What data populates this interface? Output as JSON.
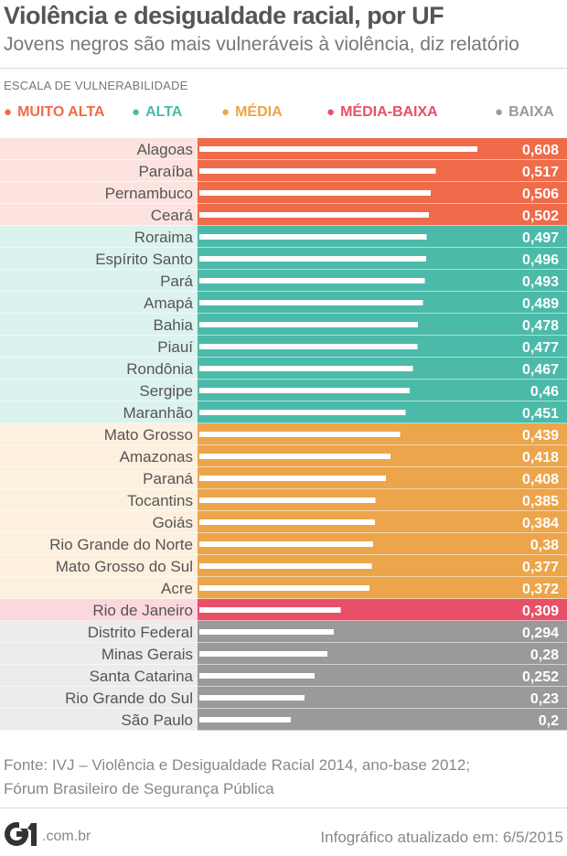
{
  "header": {
    "title": "Violência e desigualdade racial, por UF",
    "subtitle": "Jovens negros são mais vulneráveis à violência, diz relatório"
  },
  "scale_label": "ESCALA DE VULNERABILIDADE",
  "legend": [
    {
      "key": "muito-alta",
      "label": "MUITO ALTA",
      "color": "#ef6b4a"
    },
    {
      "key": "alta",
      "label": "ALTA",
      "color": "#4cbaa9"
    },
    {
      "key": "media",
      "label": "MÉDIA",
      "color": "#eca54a"
    },
    {
      "key": "media-baixa",
      "label": "MÉDIA-BAIXA",
      "color": "#e8506a"
    },
    {
      "key": "baixa",
      "label": "BAIXA",
      "color": "#9a9a9a"
    }
  ],
  "colors": {
    "muito-alta": {
      "bar": "#ef6b4a",
      "bg": "#fde3df"
    },
    "alta": {
      "bar": "#4cbaa9",
      "bg": "#dcf2ee"
    },
    "media": {
      "bar": "#eca54a",
      "bg": "#fdf0df"
    },
    "media-baixa": {
      "bar": "#e8506a",
      "bg": "#fbd8de"
    },
    "baixa": {
      "bar": "#9a9a9a",
      "bg": "#ececec"
    }
  },
  "chart_data": {
    "type": "bar",
    "orientation": "horizontal",
    "title": "Violência e desigualdade racial, por UF",
    "subtitle": "Jovens negros são mais vulneráveis à violência, diz relatório",
    "xlim": [
      0,
      0.7
    ],
    "grid": false,
    "legend_position": "top",
    "categories": [
      "Alagoas",
      "Paraíba",
      "Pernambuco",
      "Ceará",
      "Roraima",
      "Espírito Santo",
      "Pará",
      "Amapá",
      "Bahia",
      "Piauí",
      "Rondônia",
      "Sergipe",
      "Maranhão",
      "Mato Grosso",
      "Amazonas",
      "Paraná",
      "Tocantins",
      "Goiás",
      "Rio Grande do Norte",
      "Mato Grosso do Sul",
      "Acre",
      "Rio de Janeiro",
      "Distrito Federal",
      "Minas Gerais",
      "Santa Catarina",
      "Rio Grande do Sul",
      "São Paulo"
    ],
    "values": [
      0.608,
      0.517,
      0.506,
      0.502,
      0.497,
      0.496,
      0.493,
      0.489,
      0.478,
      0.477,
      0.467,
      0.46,
      0.451,
      0.439,
      0.418,
      0.408,
      0.385,
      0.384,
      0.38,
      0.377,
      0.372,
      0.309,
      0.294,
      0.28,
      0.252,
      0.23,
      0.2
    ],
    "value_labels": [
      "0,608",
      "0,517",
      "0,506",
      "0,502",
      "0,497",
      "0,496",
      "0,493",
      "0,489",
      "0,478",
      "0,477",
      "0,467",
      "0,46",
      "0,451",
      "0,439",
      "0,418",
      "0,408",
      "0,385",
      "0,384",
      "0,38",
      "0,377",
      "0,372",
      "0,309",
      "0,294",
      "0,28",
      "0,252",
      "0,23",
      "0,2"
    ],
    "groups": [
      "muito-alta",
      "muito-alta",
      "muito-alta",
      "muito-alta",
      "alta",
      "alta",
      "alta",
      "alta",
      "alta",
      "alta",
      "alta",
      "alta",
      "alta",
      "media",
      "media",
      "media",
      "media",
      "media",
      "media",
      "media",
      "media",
      "media-baixa",
      "baixa",
      "baixa",
      "baixa",
      "baixa",
      "baixa"
    ]
  },
  "footer": {
    "source_line1": "Fonte: IVJ – Violência e Desigualdade Racial 2014, ano-base 2012;",
    "source_line2": "Fórum Brasileiro de Segurança Pública",
    "logo_text": "G1",
    "logo_domain": ".com.br",
    "updated": "Infográfico atualizado em: 6/5/2015"
  }
}
